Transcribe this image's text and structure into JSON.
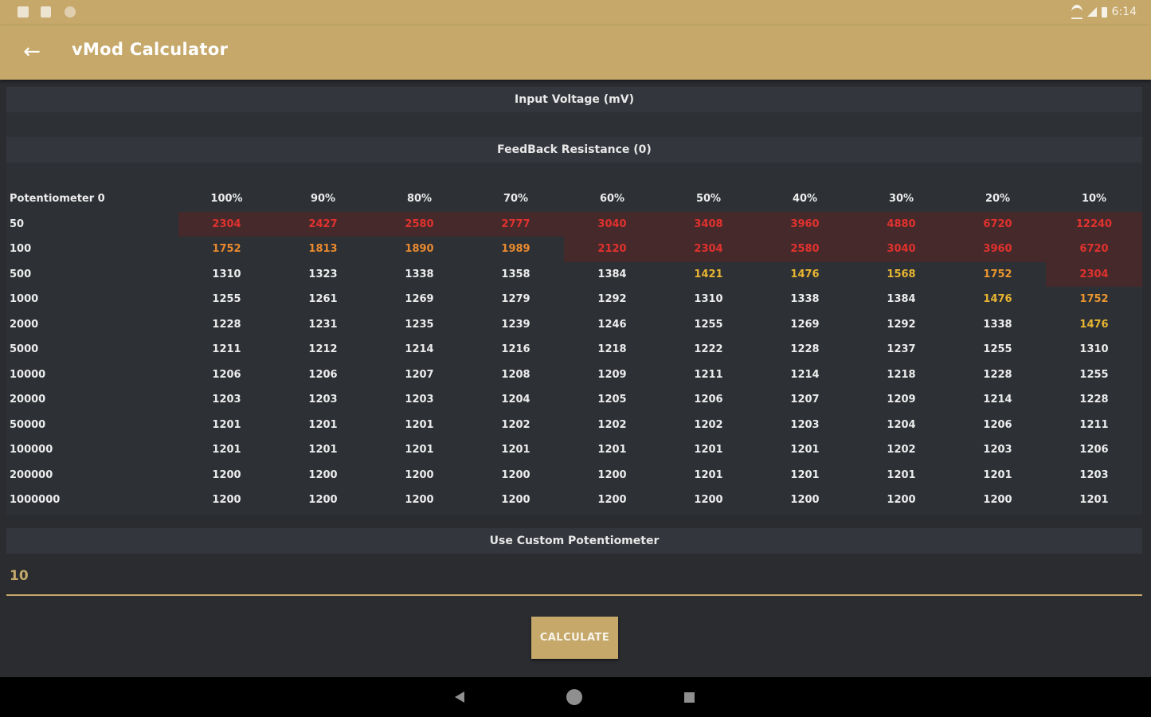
{
  "status_bar": {
    "time": "6:14"
  },
  "app_bar": {
    "title": "vMod Calculator",
    "back_icon": "arrow-left-icon"
  },
  "sections": {
    "input_voltage": "Input Voltage (mV)",
    "feedback_resistance": "FeedBack Resistance (0)",
    "custom_pot": "Use Custom Potentiometer"
  },
  "table": {
    "columns": [
      "Potentiometer 0",
      "100%",
      "90%",
      "80%",
      "70%",
      "60%",
      "50%",
      "40%",
      "30%",
      "20%",
      "10%"
    ],
    "rows": [
      {
        "label": "50",
        "values": [
          "2304",
          "2427",
          "2580",
          "2777",
          "3040",
          "3408",
          "3960",
          "4880",
          "6720",
          "12240"
        ],
        "styles": [
          "red",
          "red",
          "red",
          "red",
          "red",
          "red",
          "red",
          "red",
          "red",
          "red"
        ]
      },
      {
        "label": "100",
        "values": [
          "1752",
          "1813",
          "1890",
          "1989",
          "2120",
          "2304",
          "2580",
          "3040",
          "3960",
          "6720"
        ],
        "styles": [
          "orange",
          "orange",
          "orange",
          "orange",
          "red",
          "red",
          "red",
          "red",
          "red",
          "red"
        ]
      },
      {
        "label": "500",
        "values": [
          "1310",
          "1323",
          "1338",
          "1358",
          "1384",
          "1421",
          "1476",
          "1568",
          "1752",
          "2304"
        ],
        "styles": [
          "",
          "",
          "",
          "",
          "",
          "yellow",
          "yellow",
          "yellow",
          "amber",
          "red"
        ]
      },
      {
        "label": "1000",
        "values": [
          "1255",
          "1261",
          "1269",
          "1279",
          "1292",
          "1310",
          "1338",
          "1384",
          "1476",
          "1752"
        ],
        "styles": [
          "",
          "",
          "",
          "",
          "",
          "",
          "",
          "",
          "yellow",
          "amber"
        ]
      },
      {
        "label": "2000",
        "values": [
          "1228",
          "1231",
          "1235",
          "1239",
          "1246",
          "1255",
          "1269",
          "1292",
          "1338",
          "1476"
        ],
        "styles": [
          "",
          "",
          "",
          "",
          "",
          "",
          "",
          "",
          "",
          "yellow"
        ]
      },
      {
        "label": "5000",
        "values": [
          "1211",
          "1212",
          "1214",
          "1216",
          "1218",
          "1222",
          "1228",
          "1237",
          "1255",
          "1310"
        ],
        "styles": [
          "",
          "",
          "",
          "",
          "",
          "",
          "",
          "",
          "",
          ""
        ]
      },
      {
        "label": "10000",
        "values": [
          "1206",
          "1206",
          "1207",
          "1208",
          "1209",
          "1211",
          "1214",
          "1218",
          "1228",
          "1255"
        ],
        "styles": [
          "",
          "",
          "",
          "",
          "",
          "",
          "",
          "",
          "",
          ""
        ]
      },
      {
        "label": "20000",
        "values": [
          "1203",
          "1203",
          "1203",
          "1204",
          "1205",
          "1206",
          "1207",
          "1209",
          "1214",
          "1228"
        ],
        "styles": [
          "",
          "",
          "",
          "",
          "",
          "",
          "",
          "",
          "",
          ""
        ]
      },
      {
        "label": "50000",
        "values": [
          "1201",
          "1201",
          "1201",
          "1202",
          "1202",
          "1202",
          "1203",
          "1204",
          "1206",
          "1211"
        ],
        "styles": [
          "",
          "",
          "",
          "",
          "",
          "",
          "",
          "",
          "",
          ""
        ]
      },
      {
        "label": "100000",
        "values": [
          "1201",
          "1201",
          "1201",
          "1201",
          "1201",
          "1201",
          "1201",
          "1202",
          "1203",
          "1206"
        ],
        "styles": [
          "",
          "",
          "",
          "",
          "",
          "",
          "",
          "",
          "",
          ""
        ]
      },
      {
        "label": "200000",
        "values": [
          "1200",
          "1200",
          "1200",
          "1200",
          "1200",
          "1201",
          "1201",
          "1201",
          "1201",
          "1203"
        ],
        "styles": [
          "",
          "",
          "",
          "",
          "",
          "",
          "",
          "",
          "",
          ""
        ]
      },
      {
        "label": "1000000",
        "values": [
          "1200",
          "1200",
          "1200",
          "1200",
          "1200",
          "1200",
          "1200",
          "1200",
          "1200",
          "1201"
        ],
        "styles": [
          "",
          "",
          "",
          "",
          "",
          "",
          "",
          "",
          "",
          ""
        ]
      }
    ]
  },
  "custom_input": {
    "value": "10"
  },
  "calculate_button": {
    "label": "CALCULATE"
  },
  "colors": {
    "accent": "#c5a86a",
    "background": "#2a2c30",
    "red": "#e0322e",
    "orange": "#e98a2f",
    "yellow": "#e7b532"
  },
  "nav_bar": {
    "back_icon": "nav-back-icon",
    "home_icon": "nav-home-icon",
    "recents_icon": "nav-recents-icon"
  }
}
